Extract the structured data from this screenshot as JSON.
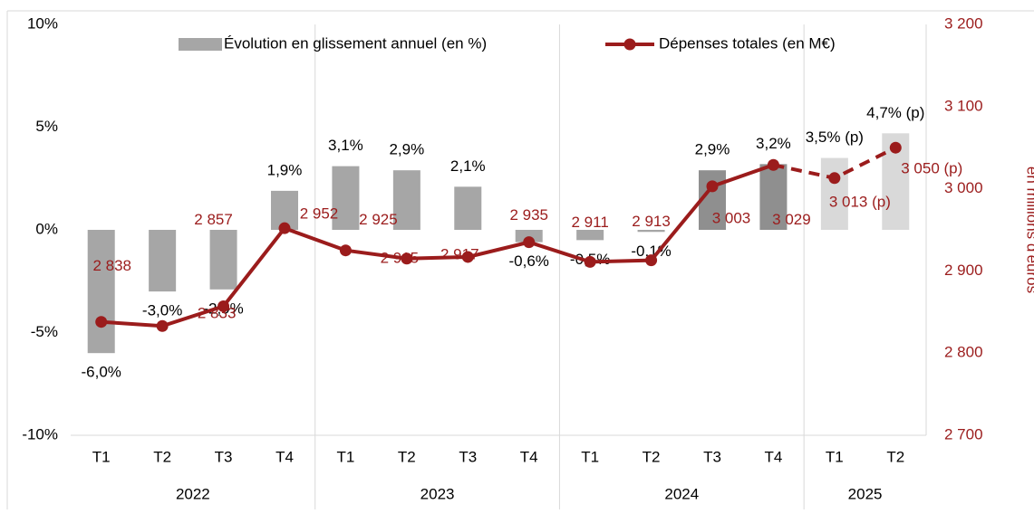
{
  "chart_data": {
    "type": "bar_line",
    "categories": [
      "T1",
      "T2",
      "T3",
      "T4",
      "T1",
      "T2",
      "T3",
      "T4",
      "T1",
      "T2",
      "T3",
      "T4",
      "T1",
      "T2"
    ],
    "x_groups": [
      {
        "label": "2022",
        "span": 4
      },
      {
        "label": "2023",
        "span": 4
      },
      {
        "label": "2024",
        "span": 4
      },
      {
        "label": "2025",
        "span": 2
      }
    ],
    "series": [
      {
        "name": "Évolution en glissement annuel (en %)",
        "kind": "bar",
        "color": "#a6a6a6",
        "colors": [
          "#a6a6a6",
          "#a6a6a6",
          "#a6a6a6",
          "#a6a6a6",
          "#a6a6a6",
          "#a6a6a6",
          "#a6a6a6",
          "#a6a6a6",
          "#a6a6a6",
          "#a6a6a6",
          "#8f8f8f",
          "#8f8f8f",
          "#d9d9d9",
          "#d9d9d9"
        ],
        "values": [
          -6.0,
          -3.0,
          -2.9,
          1.9,
          3.1,
          2.9,
          2.1,
          -0.6,
          -0.5,
          -0.1,
          2.9,
          3.2,
          3.5,
          4.7
        ],
        "value_labels": [
          "-6,0%",
          "-3,0%",
          "-2,9%",
          "1,9%",
          "3,1%",
          "2,9%",
          "2,1%",
          "-0,6%",
          "-0,5%",
          "-0,1%",
          "2,9%",
          "3,2%",
          "3,5% (p)",
          "4,7% (p)"
        ]
      },
      {
        "name": "Dépenses totales (en M€)",
        "kind": "line",
        "axis": "y2",
        "color": "#9b1c1c",
        "dashed_from": 11,
        "values": [
          2838,
          2833,
          2857,
          2952,
          2925,
          2915,
          2917,
          2935,
          2911,
          2913,
          3003,
          3029,
          3013,
          3050
        ],
        "value_labels": [
          "2 838",
          "2 833",
          "2 857",
          "2 952",
          "2 925",
          "2 915",
          "2 917",
          "2 935",
          "2 911",
          "2 913",
          "3 003",
          "3 029",
          "3 013 (p)",
          "3 050 (p)"
        ]
      }
    ],
    "ylim": [
      -10,
      10
    ],
    "yticks": [
      {
        "value": -10,
        "label": "-10%"
      },
      {
        "value": -5,
        "label": "-5%"
      },
      {
        "value": 0,
        "label": "0%"
      },
      {
        "value": 5,
        "label": "5%"
      },
      {
        "value": 10,
        "label": "10%"
      }
    ],
    "y2lim": [
      2700,
      3200
    ],
    "y2ticks": [
      {
        "value": 2700,
        "label": "2 700"
      },
      {
        "value": 2800,
        "label": "2 800"
      },
      {
        "value": 2900,
        "label": "2 900"
      },
      {
        "value": 3000,
        "label": "3 000"
      },
      {
        "value": 3100,
        "label": "3 100"
      },
      {
        "value": 3200,
        "label": "3 200"
      }
    ],
    "y2label": "en millions d'euros"
  }
}
